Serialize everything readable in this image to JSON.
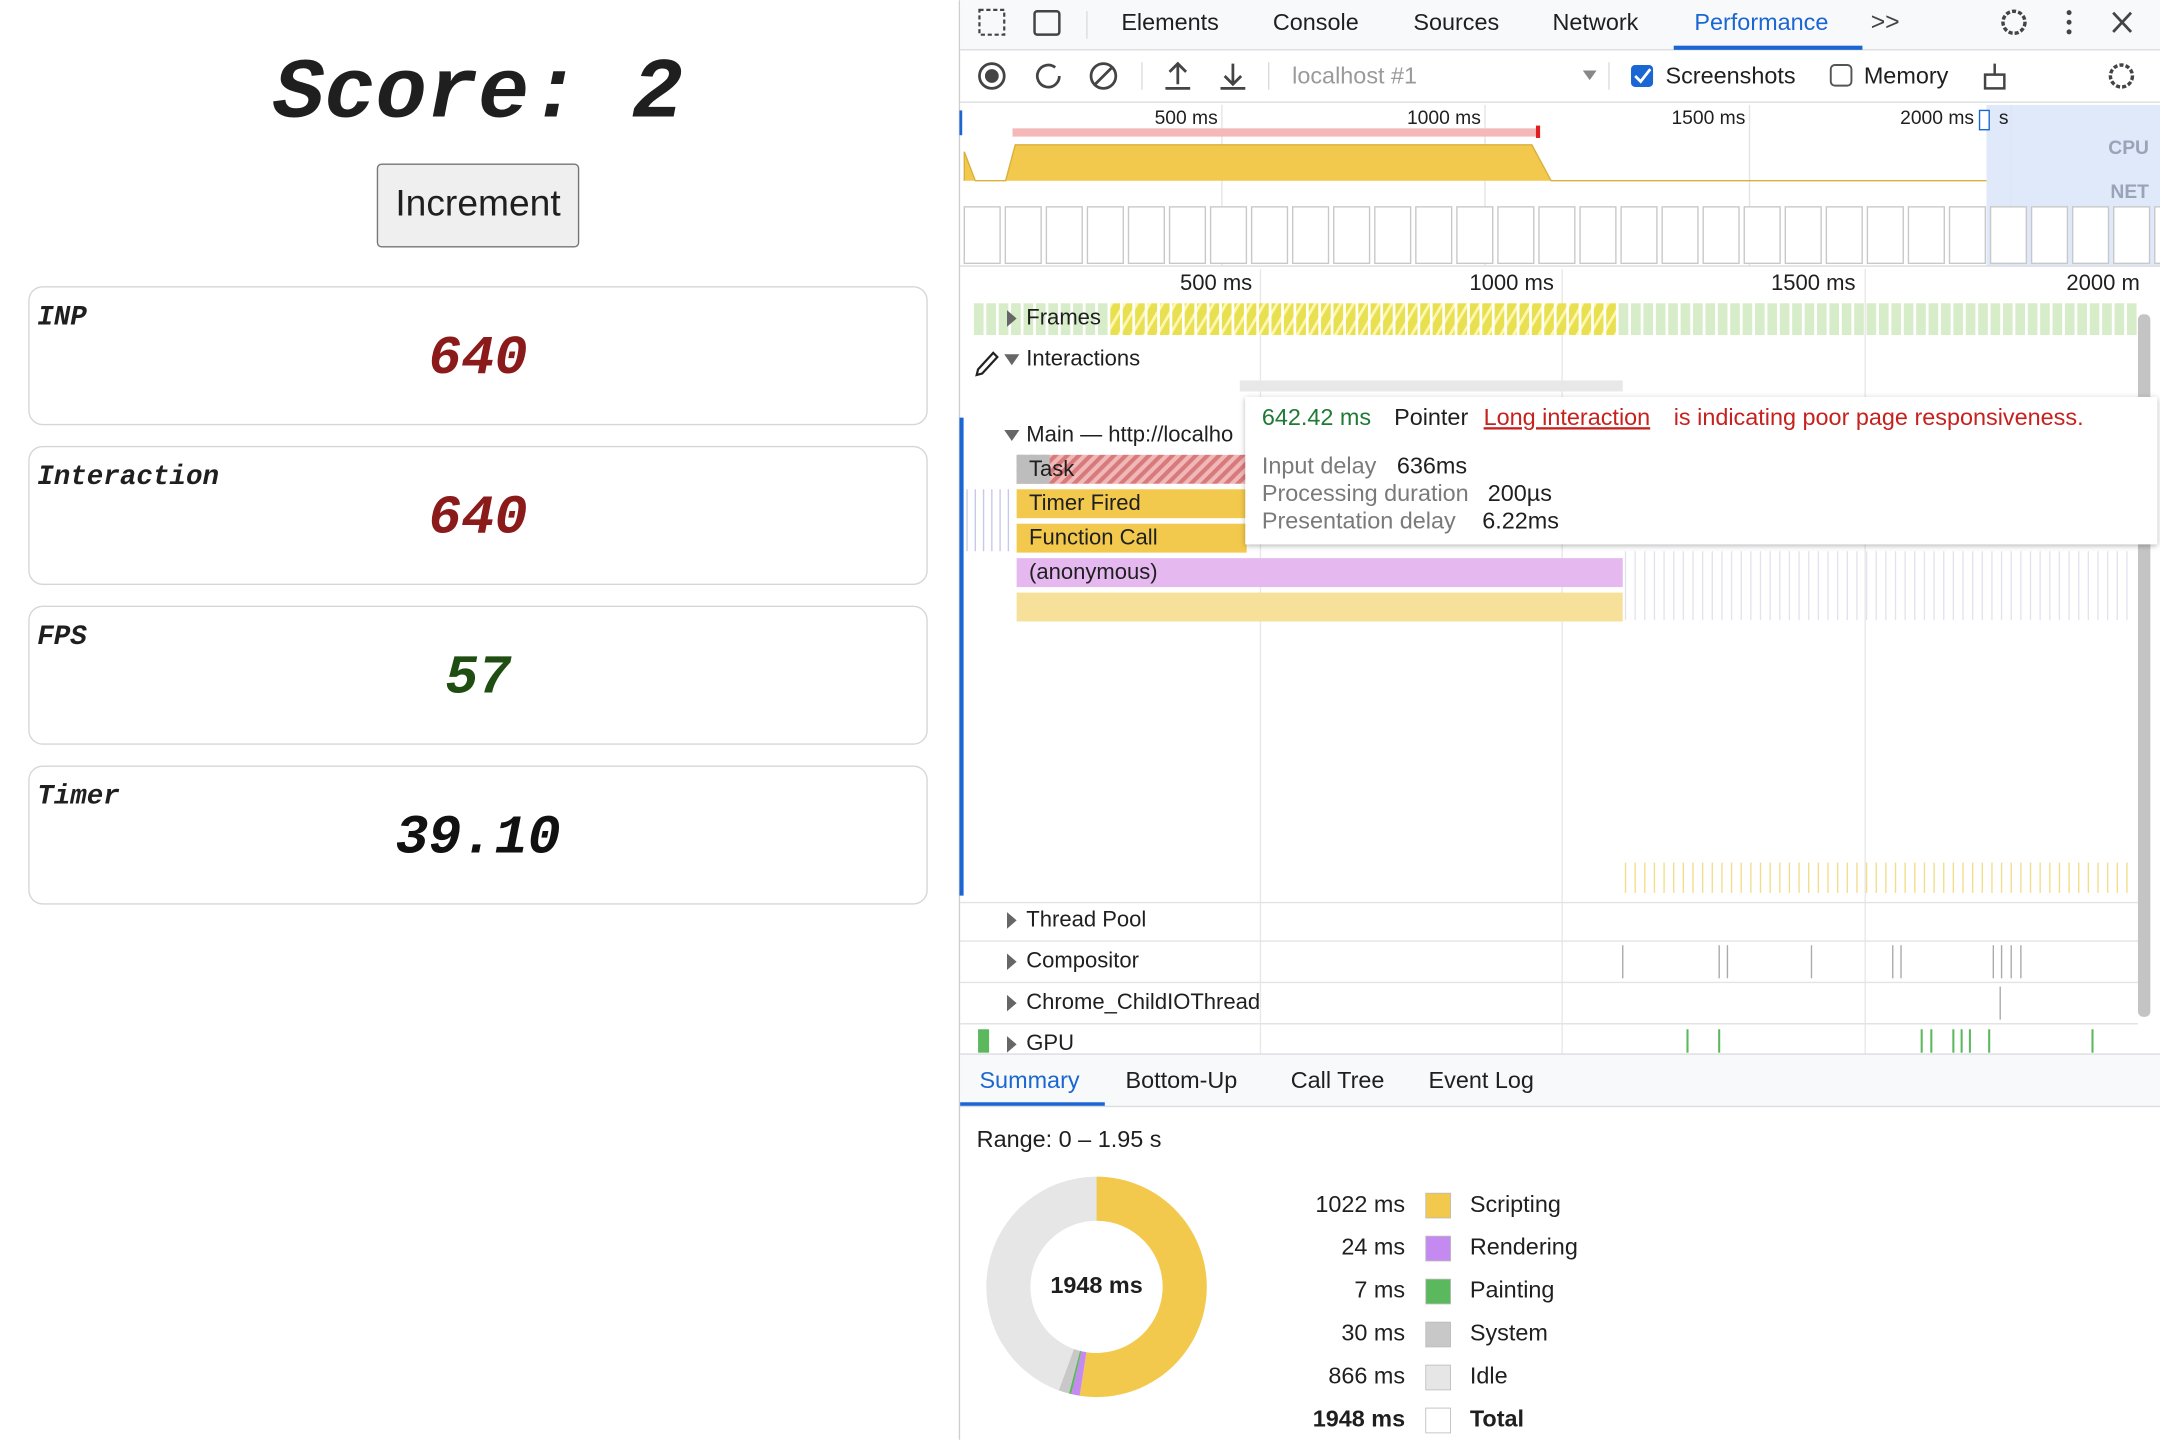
{
  "app": {
    "score": "Score: 2",
    "button": "Increment",
    "metrics": [
      {
        "label": "INP",
        "value": 640,
        "color": "#8b1a1a"
      },
      {
        "label": "Interaction",
        "value": 640,
        "color": "#8b1a1a"
      },
      {
        "label": "FPS",
        "value": 57,
        "color": "#1f4d12"
      },
      {
        "label": "Timer",
        "value": "39.10",
        "color": "#111111"
      }
    ]
  },
  "devtools": {
    "tabs": [
      "Elements",
      "Console",
      "Sources",
      "Network",
      "Performance"
    ],
    "more": ">>",
    "toolbar": {
      "target": "localhost #1",
      "screenshots": "Screenshots",
      "memory": "Memory"
    },
    "overview": {
      "ticks": [
        "500 ms",
        "1000 ms",
        "1500 ms",
        "2000 ms"
      ],
      "suffix": "s",
      "cpu": "CPU",
      "net": "NET"
    },
    "timeline": {
      "ticks": [
        "500 ms",
        "1000 ms",
        "1500 ms",
        "2000 m"
      ],
      "tracks": {
        "frames": "Frames",
        "interactions": "Interactions",
        "main": "Main — http://localho"
      },
      "flame": [
        "Task",
        "Timer Fired",
        "Function Call",
        "(anonymous)"
      ],
      "threads": [
        "Thread Pool",
        "Compositor",
        "Chrome_ChildIOThread",
        "GPU"
      ]
    },
    "tooltip": {
      "duration": "642.42 ms",
      "kind": "Pointer",
      "link": "Long interaction",
      "message": "is indicating poor page responsiveness.",
      "rows": [
        {
          "label": "Input delay",
          "value": "636ms"
        },
        {
          "label": "Processing duration",
          "value": "200µs"
        },
        {
          "label": "Presentation delay",
          "value": "6.22ms"
        }
      ]
    },
    "bottom_tabs": [
      "Summary",
      "Bottom-Up",
      "Call Tree",
      "Event Log"
    ],
    "summary": {
      "range": "Range: 0 – 1.95 s",
      "center": "1948 ms",
      "items": [
        {
          "value": 1022,
          "label": "1022 ms",
          "name": "Scripting",
          "color": "#f2c94c"
        },
        {
          "value": 24,
          "label": "24 ms",
          "name": "Rendering",
          "color": "#c58af0"
        },
        {
          "value": 7,
          "label": "7 ms",
          "name": "Painting",
          "color": "#5cb85c"
        },
        {
          "value": 30,
          "label": "30 ms",
          "name": "System",
          "color": "#c8c8c8"
        },
        {
          "value": 866,
          "label": "866 ms",
          "name": "Idle",
          "color": "#e6e6e6"
        }
      ],
      "total": {
        "value": 1948,
        "label": "1948 ms",
        "name": "Total"
      }
    }
  }
}
